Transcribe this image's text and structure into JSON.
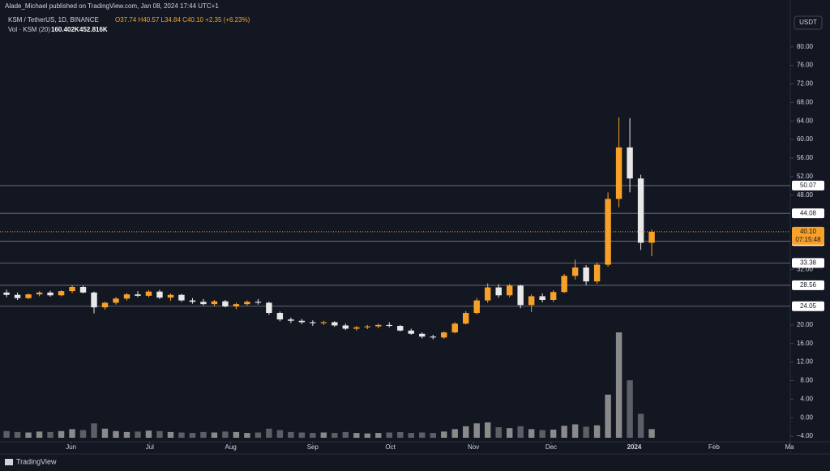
{
  "header": {
    "publisher": "Alade_Michael published on TradingView.com, Jan 08, 2024 17:44 UTC+1",
    "symbol": "KSM / TetherUS, 1D, BINANCE",
    "ohlc": "O37.74 H40.57 L34.84 C40.10 +2.35 (+6.23%)",
    "volume_title": "Vol · KSM (20)",
    "volume_value": "160.402K",
    "volume_ma": "452.816K",
    "currency_button": "USDT",
    "brand": "TradingView"
  },
  "chart_data": {
    "type": "candlestick",
    "open": [
      27.0,
      26.5,
      25.8,
      26.6,
      27.0,
      26.4,
      27.3,
      28.2,
      27.0,
      23.8,
      24.8,
      25.7,
      26.6,
      26.3,
      27.2,
      25.9,
      26.5,
      25.3,
      25.0,
      24.5,
      25.1,
      24.0,
      24.5,
      25.0,
      24.8,
      22.6,
      21.2,
      20.9,
      20.6,
      20.4,
      20.6,
      19.9,
      19.2,
      19.5,
      19.7,
      20.0,
      19.8,
      18.8,
      18.1,
      17.5,
      17.3,
      18.4,
      20.3,
      22.6,
      25.3,
      28.1,
      26.4,
      28.5,
      24.3,
      26.2,
      25.4,
      27.1,
      30.6,
      32.4,
      29.4,
      33.0,
      47.2,
      58.3,
      51.6,
      37.74
    ],
    "high": [
      27.6,
      27.0,
      26.8,
      27.3,
      27.4,
      27.5,
      28.6,
      28.5,
      27.2,
      25.0,
      26.0,
      26.9,
      27.3,
      27.5,
      27.6,
      26.8,
      26.7,
      25.8,
      25.6,
      25.4,
      25.4,
      24.8,
      25.3,
      25.6,
      25.0,
      22.9,
      21.6,
      21.3,
      21.0,
      20.9,
      20.8,
      20.3,
      19.8,
      20.0,
      20.3,
      20.6,
      20.0,
      19.2,
      18.4,
      17.9,
      18.6,
      20.6,
      23.0,
      25.8,
      29.0,
      28.8,
      28.9,
      28.7,
      26.6,
      26.8,
      27.5,
      31.0,
      34.1,
      32.9,
      33.5,
      48.6,
      64.8,
      64.6,
      52.4,
      40.57
    ],
    "low": [
      26.0,
      25.4,
      25.6,
      26.2,
      26.1,
      26.2,
      26.9,
      26.8,
      22.5,
      23.3,
      24.4,
      25.3,
      26.0,
      26.0,
      25.6,
      25.2,
      25.0,
      24.6,
      24.2,
      24.0,
      23.8,
      23.4,
      24.2,
      24.4,
      22.2,
      20.8,
      20.4,
      20.2,
      19.8,
      20.0,
      19.6,
      18.9,
      18.8,
      19.1,
      19.3,
      19.5,
      18.6,
      17.9,
      17.1,
      16.9,
      17.0,
      18.2,
      20.1,
      22.3,
      24.8,
      25.9,
      26.0,
      23.6,
      22.8,
      24.9,
      25.0,
      26.9,
      29.8,
      28.6,
      28.9,
      32.6,
      45.4,
      48.6,
      36.2,
      34.84
    ],
    "close": [
      26.5,
      25.8,
      26.6,
      27.0,
      26.4,
      27.3,
      28.2,
      27.0,
      23.8,
      24.8,
      25.7,
      26.6,
      26.3,
      27.2,
      25.9,
      26.5,
      25.3,
      25.0,
      24.5,
      25.1,
      24.0,
      24.5,
      25.0,
      24.8,
      22.6,
      21.2,
      20.9,
      20.6,
      20.4,
      20.6,
      19.9,
      19.2,
      19.5,
      19.7,
      20.0,
      19.8,
      18.8,
      18.1,
      17.5,
      17.3,
      18.4,
      20.3,
      22.6,
      25.3,
      28.1,
      26.4,
      28.5,
      24.3,
      26.2,
      25.4,
      27.1,
      30.6,
      32.4,
      29.4,
      33.0,
      47.2,
      58.3,
      51.6,
      37.74,
      40.1
    ],
    "volume": [
      1.4,
      1.2,
      1.1,
      1.3,
      1.2,
      1.4,
      1.8,
      1.6,
      3.0,
      1.9,
      1.4,
      1.2,
      1.3,
      1.5,
      1.4,
      1.2,
      1.1,
      1.0,
      1.2,
      1.1,
      1.3,
      1.2,
      1.0,
      1.1,
      1.9,
      1.6,
      1.2,
      1.1,
      1.0,
      1.1,
      1.0,
      1.2,
      1.0,
      0.9,
      1.0,
      1.1,
      1.2,
      1.0,
      1.1,
      1.0,
      1.3,
      1.8,
      2.4,
      3.0,
      3.2,
      2.2,
      2.0,
      2.4,
      1.8,
      1.6,
      1.7,
      2.5,
      2.8,
      2.3,
      2.6,
      9.0,
      22.0,
      12.0,
      5.0,
      1.8
    ],
    "up_color": "#f7a128",
    "down_color": "#e8e8e8",
    "ylim": [
      -5.2,
      88
    ],
    "yticks": [
      {
        "value": 80,
        "label": "80.00"
      },
      {
        "value": 76,
        "label": "76.00"
      },
      {
        "value": 72,
        "label": "72.00"
      },
      {
        "value": 68,
        "label": "68.00"
      },
      {
        "value": 64,
        "label": "64.00"
      },
      {
        "value": 60,
        "label": "60.00"
      },
      {
        "value": 56,
        "label": "56.00"
      },
      {
        "value": 52,
        "label": "52.00"
      },
      {
        "value": 48,
        "label": "48.00"
      },
      {
        "value": 32,
        "label": "32.00"
      },
      {
        "value": 20,
        "label": "20.00"
      },
      {
        "value": 16,
        "label": "16.00"
      },
      {
        "value": 12,
        "label": "12.00"
      },
      {
        "value": 8,
        "label": "8.00"
      },
      {
        "value": 4,
        "label": "4.00"
      },
      {
        "value": 0,
        "label": "0.00"
      },
      {
        "value": -4,
        "label": "−4.00"
      }
    ],
    "xlim": [
      -0.6,
      71.3
    ],
    "xticks": [
      {
        "value": 5.9,
        "label": "Jun"
      },
      {
        "value": 13.1,
        "label": "Jul"
      },
      {
        "value": 20.5,
        "label": "Aug"
      },
      {
        "value": 28,
        "label": "Sep"
      },
      {
        "value": 35.1,
        "label": "Oct"
      },
      {
        "value": 42.7,
        "label": "Nov"
      },
      {
        "value": 49.8,
        "label": "Dec"
      },
      {
        "value": 57.4,
        "label": "2024"
      },
      {
        "value": 64.7,
        "label": "Feb"
      },
      {
        "value": 71.6,
        "label": "Ma"
      }
    ],
    "levels": [
      50.07,
      44.08,
      38.09,
      33.38,
      28.56,
      24.05
    ],
    "last_price": {
      "value": 40.1,
      "label": "40.10"
    },
    "countdown": "07:15:48"
  }
}
